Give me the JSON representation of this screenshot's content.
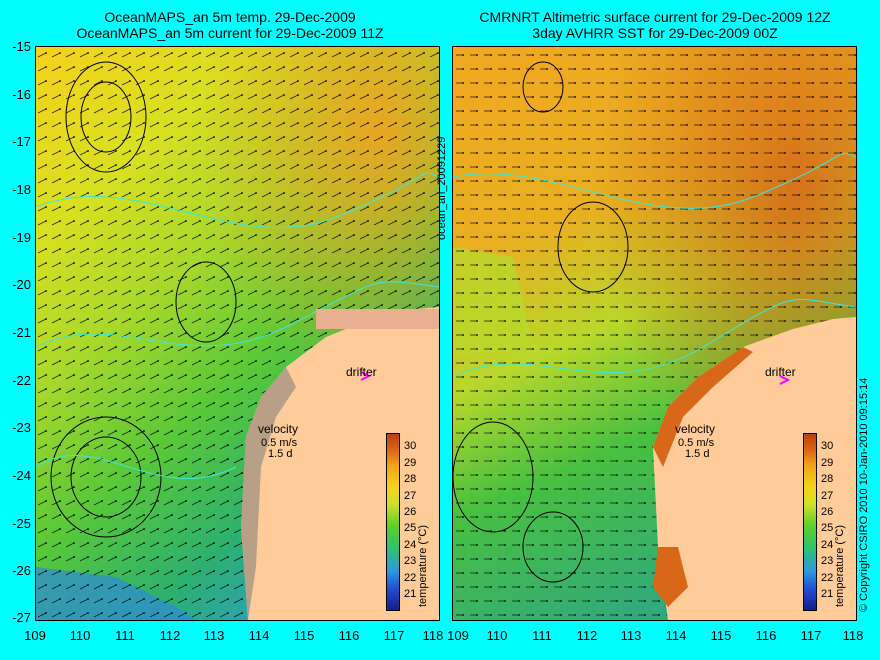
{
  "left_panel": {
    "title_line1": "OceanMAPS_an 5m temp. 29-Dec-2009",
    "title_line2": "OceanMAPS_an 5m current for 29-Dec-2009 11Z"
  },
  "right_panel": {
    "title_line1": "CMRNRT Altimetric surface current for 29-Dec-2009 12Z",
    "title_line2": "3day AVHRR SST for 29-Dec-2009 00Z"
  },
  "middle_label": "ocean_an_20091229",
  "copyright": "© Copyright CSIRO 2010   10-Jan-2010 09:15:14",
  "labels": {
    "drifter": "drifter",
    "velocity": "velocity",
    "speed": "0.5 m/s",
    "duration": "1.5 d"
  },
  "colorbar": {
    "title": "temperature (°C)",
    "ticks": [
      "30",
      "29",
      "28",
      "27",
      "26",
      "25",
      "24",
      "23",
      "22",
      "21"
    ]
  },
  "axes": {
    "y_ticks": [
      "-15",
      "-16",
      "-17",
      "-18",
      "-19",
      "-20",
      "-21",
      "-22",
      "-23",
      "-24",
      "-25",
      "-26",
      "-27"
    ],
    "x_ticks": [
      "109",
      "110",
      "111",
      "112",
      "113",
      "114",
      "115",
      "116",
      "117",
      "118"
    ]
  },
  "colors": {
    "background": "#00ffff",
    "land": "#ffcc99",
    "drifter": "#ff00ff"
  }
}
